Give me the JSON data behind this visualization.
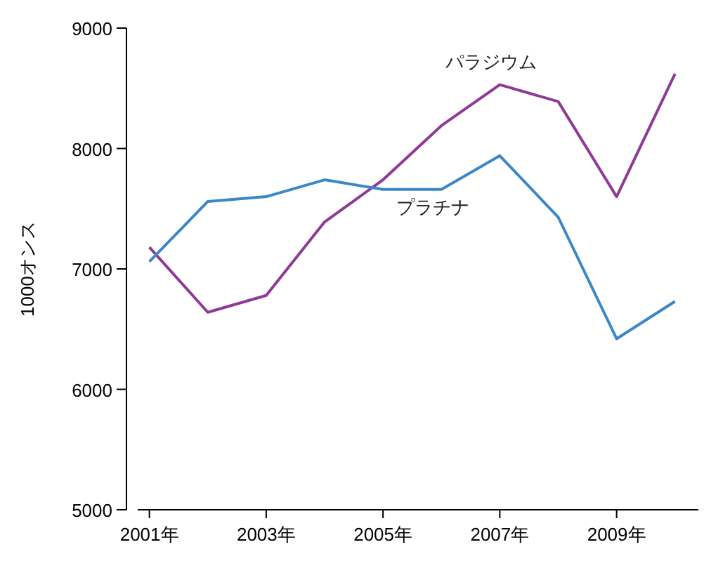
{
  "chart_data": {
    "type": "line",
    "ylabel": "1000オンス",
    "x": [
      2001,
      2002,
      2003,
      2004,
      2005,
      2006,
      2007,
      2008,
      2009,
      2010
    ],
    "xlim": [
      2000.8,
      2010.4
    ],
    "xticks": [
      {
        "value": 2001,
        "label": "2001年"
      },
      {
        "value": 2003,
        "label": "2003年"
      },
      {
        "value": 2005,
        "label": "2005年"
      },
      {
        "value": 2007,
        "label": "2007年"
      },
      {
        "value": 2009,
        "label": "2009年"
      }
    ],
    "ylim": [
      5000,
      9000
    ],
    "yticks": [
      5000,
      6000,
      7000,
      8000,
      9000
    ],
    "grid": false,
    "marker": "none",
    "line_style": "solid",
    "series": [
      {
        "name": "パラジウム",
        "color": "#8e3a96",
        "values": [
          7180,
          6640,
          6780,
          7390,
          7740,
          8190,
          8530,
          8390,
          7600,
          8620
        ]
      },
      {
        "name": "プラチナ",
        "color": "#3b87c8",
        "values": [
          7060,
          7560,
          7600,
          7740,
          7660,
          7660,
          7940,
          7430,
          6420,
          6730
        ]
      }
    ]
  }
}
